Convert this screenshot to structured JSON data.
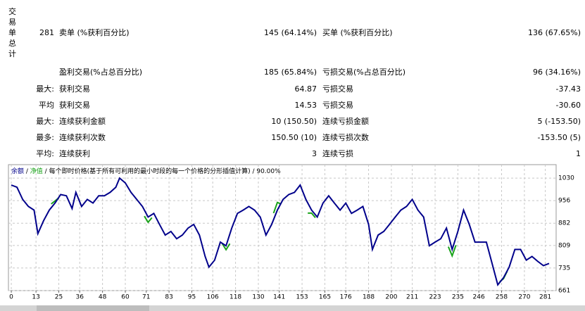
{
  "table": {
    "side_label": "交易单总计",
    "rows": [
      [
        "",
        "281",
        "卖单 (%获利百分比)",
        "145 (64.14%)",
        "买单 (%获利百分比)",
        "136 (67.65%)"
      ],
      [
        "",
        "",
        "盈利交易(%占总百分比)",
        "185 (65.84%)",
        "亏损交易(%占总百分比)",
        "96 (34.16%)"
      ],
      [
        "",
        "最大:",
        "获利交易",
        "64.87",
        "亏损交易",
        "-37.43"
      ],
      [
        "",
        "平均",
        "获利交易",
        "14.53",
        "亏损交易",
        "-30.60"
      ],
      [
        "",
        "最大:",
        "连续获利金额",
        "10 (150.50)",
        "连续亏损金额",
        "5 (-153.50)"
      ],
      [
        "",
        "最多:",
        "连续获利次数",
        "150.50 (10)",
        "连续亏损次数",
        "-153.50 (5)"
      ],
      [
        "",
        "平均:",
        "连续获利",
        "3",
        "连续亏损",
        "1"
      ]
    ]
  },
  "chart_data": {
    "type": "line",
    "subtitle": "每个即时价格(基于所有可利用的最小时段的每一个价格的分形插值计算) / 90.00%",
    "x": [
      0,
      3,
      6,
      9,
      12,
      14,
      17,
      20,
      23,
      26,
      29,
      32,
      34,
      37,
      40,
      43,
      46,
      49,
      52,
      55,
      57,
      60,
      63,
      66,
      69,
      72,
      75,
      78,
      81,
      84,
      87,
      90,
      93,
      96,
      99,
      102,
      104,
      107,
      110,
      113,
      116,
      119,
      122,
      125,
      128,
      131,
      134,
      137,
      140,
      143,
      146,
      149,
      152,
      155,
      158,
      161,
      164,
      167,
      170,
      173,
      176,
      179,
      182,
      185,
      188,
      190,
      193,
      196,
      199,
      202,
      205,
      208,
      211,
      214,
      217,
      220,
      223,
      226,
      229,
      232,
      235,
      238,
      241,
      244,
      247,
      250,
      253,
      256,
      259,
      262,
      265,
      268,
      271,
      274,
      277,
      280,
      283
    ],
    "series": [
      {
        "name": "净值",
        "color": "#1aa31a",
        "x": [
          21,
          23,
          25,
          26,
          70,
          72,
          74,
          75,
          111,
          113,
          115,
          116,
          138,
          140,
          142,
          143,
          156,
          158,
          160,
          161,
          230,
          232,
          234,
          235,
          257,
          259,
          261
        ],
        "values": [
          945,
          955,
          965,
          null,
          905,
          885,
          900,
          null,
          815,
          795,
          815,
          null,
          915,
          950,
          945,
          null,
          915,
          915,
          900,
          null,
          805,
          775,
          810,
          null,
          690,
          700,
          725
        ]
      },
      {
        "name": "余额",
        "color": "#00008b",
        "values": [
          1007,
          1000,
          960,
          937,
          925,
          848,
          890,
          925,
          948,
          976,
          972,
          930,
          983,
          937,
          960,
          948,
          972,
          972,
          983,
          1000,
          1030,
          1014,
          983,
          960,
          937,
          902,
          914,
          878,
          843,
          855,
          831,
          843,
          866,
          878,
          843,
          773,
          738,
          761,
          820,
          808,
          866,
          914,
          925,
          937,
          925,
          902,
          843,
          878,
          925,
          960,
          976,
          983,
          1007,
          960,
          925,
          902,
          948,
          972,
          948,
          925,
          948,
          914,
          925,
          937,
          878,
          796,
          843,
          855,
          878,
          902,
          925,
          937,
          960,
          925,
          902,
          808,
          820,
          831,
          866,
          796,
          855,
          925,
          878,
          820,
          820,
          820,
          750,
          680,
          703,
          738,
          796,
          796,
          761,
          773,
          757,
          743,
          750
        ]
      }
    ],
    "xlim": [
      -1.5,
      286.7
    ],
    "ylim": [
      661,
      1074
    ],
    "xticks": [
      0,
      13,
      25,
      36,
      48,
      60,
      71,
      83,
      95,
      106,
      118,
      130,
      141,
      153,
      165,
      176,
      188,
      200,
      211,
      223,
      235,
      246,
      258,
      270,
      281
    ],
    "yticks": [
      661,
      735,
      809,
      882,
      956,
      1030
    ],
    "grid": true
  }
}
